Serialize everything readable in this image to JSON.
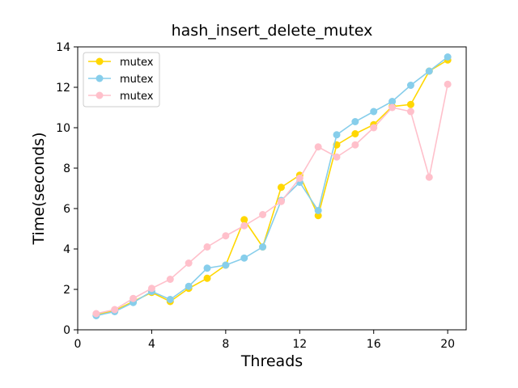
{
  "chart_data": {
    "type": "line",
    "title": "hash_insert_delete_mutex",
    "xlabel": "Threads",
    "ylabel": "Time(seconds)",
    "xlim": [
      0,
      21
    ],
    "ylim": [
      0,
      14
    ],
    "xticks": [
      0,
      4,
      8,
      12,
      16,
      20
    ],
    "yticks": [
      0,
      2,
      4,
      6,
      8,
      10,
      12,
      14
    ],
    "x": [
      1,
      2,
      3,
      4,
      5,
      6,
      7,
      8,
      9,
      10,
      11,
      12,
      13,
      14,
      15,
      16,
      17,
      18,
      19,
      20
    ],
    "legend_position": "upper-left",
    "series": [
      {
        "name": "mutex",
        "color": "#FFD700",
        "values": [
          0.75,
          0.95,
          1.4,
          1.85,
          1.4,
          2.05,
          2.55,
          3.2,
          5.45,
          4.1,
          7.05,
          7.65,
          5.65,
          9.15,
          9.7,
          10.15,
          11.05,
          11.15,
          12.8,
          13.35
        ]
      },
      {
        "name": "mutex",
        "color": "#87CEEB",
        "values": [
          0.7,
          0.9,
          1.35,
          1.9,
          1.5,
          2.15,
          3.05,
          3.2,
          3.55,
          4.1,
          6.4,
          7.3,
          5.9,
          9.65,
          10.3,
          10.8,
          11.3,
          12.1,
          12.8,
          13.5
        ]
      },
      {
        "name": "mutex",
        "color": "#FFC0CB",
        "values": [
          0.8,
          1.0,
          1.55,
          2.05,
          2.5,
          3.3,
          4.1,
          4.65,
          5.15,
          5.7,
          6.35,
          7.5,
          9.05,
          8.55,
          9.15,
          10.0,
          11.0,
          10.8,
          7.55,
          12.15
        ]
      }
    ]
  }
}
